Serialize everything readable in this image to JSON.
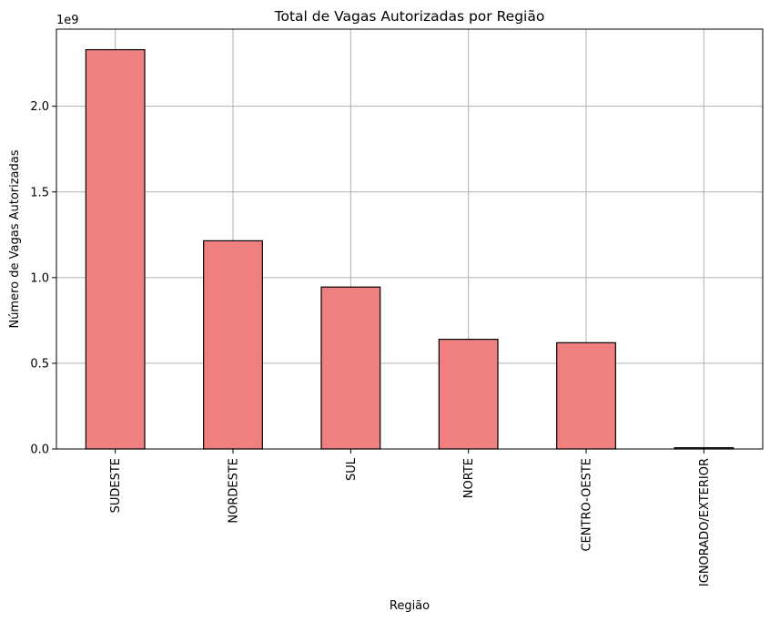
{
  "chart_data": {
    "type": "bar",
    "title": "Total de Vagas Autorizadas por Região",
    "xlabel": "Região",
    "ylabel": "Número de Vagas Autorizadas",
    "offset_label": "1e9",
    "categories": [
      "SUDESTE",
      "NORDESTE",
      "SUL",
      "NORTE",
      "CENTRO-OESTE",
      "IGNORADO/EXTERIOR"
    ],
    "values": [
      2330000000,
      1215000000,
      945000000,
      640000000,
      620000000,
      7000000
    ],
    "ylim": [
      0,
      2450000000
    ],
    "yticks": [
      0,
      500000000,
      1000000000,
      1500000000,
      2000000000
    ],
    "ytick_labels": [
      "0.0",
      "0.5",
      "1.0",
      "1.5",
      "2.0"
    ],
    "grid": true,
    "colors": {
      "bar_fill": "#f08080",
      "bar_edge": "#000000",
      "grid": "#b0b0b0",
      "axis": "#000000"
    }
  }
}
